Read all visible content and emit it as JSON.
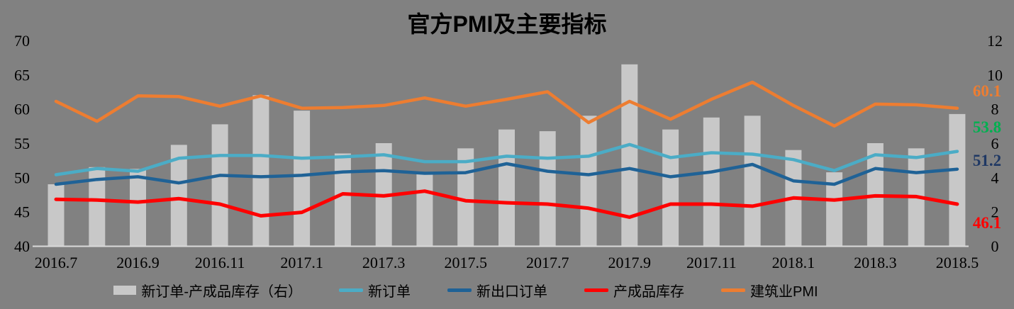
{
  "title": "官方PMI及主要指标",
  "colors": {
    "background": "#818181",
    "bar": "#C8C8C8",
    "new_orders_line": "#4BACC6",
    "new_export_orders_line": "#1F6296",
    "finished_goods_inventory_line": "#FF0000",
    "construction_pmi_line": "#ED7D31",
    "axis_line": "#DADADA",
    "text": "#000000",
    "end_label_new_orders": "#00B050",
    "end_label_new_export_orders": "#1F3864"
  },
  "chart_data": {
    "type": "combo-bar-line",
    "title": "官方PMI及主要指标",
    "grid": false,
    "legend_position": "bottom",
    "categories": [
      "2016.7",
      "2016.8",
      "2016.9",
      "2016.10",
      "2016.11",
      "2016.12",
      "2017.1",
      "2017.2",
      "2017.3",
      "2017.4",
      "2017.5",
      "2017.6",
      "2017.7",
      "2017.8",
      "2017.9",
      "2017.10",
      "2017.11",
      "2017.12",
      "2018.1",
      "2018.2",
      "2018.3",
      "2018.4",
      "2018.5"
    ],
    "x_tick_labels": [
      "2016.7",
      "2016.9",
      "2016.11",
      "2017.1",
      "2017.3",
      "2017.5",
      "2017.7",
      "2017.9",
      "2017.11",
      "2018.1",
      "2018.3",
      "2018.5"
    ],
    "left_axis": {
      "min": 40,
      "max": 70,
      "ticks": [
        70,
        65,
        60,
        55,
        50,
        45,
        40
      ]
    },
    "right_axis": {
      "min": 0,
      "max": 12,
      "ticks": [
        12,
        10,
        8,
        6,
        4,
        2,
        0
      ]
    },
    "series": [
      {
        "key": "bar_new_orders_minus_inventory",
        "name": "新订单-产成品库存（右）",
        "type": "bar",
        "axis": "right",
        "color": "#C8C8C8",
        "values": [
          3.6,
          4.6,
          4.5,
          5.9,
          7.1,
          8.8,
          7.9,
          5.4,
          6.0,
          4.3,
          5.7,
          6.8,
          6.7,
          7.6,
          10.6,
          6.8,
          7.5,
          7.6,
          5.6,
          4.3,
          6.0,
          5.7,
          7.7
        ]
      },
      {
        "key": "new_orders",
        "name": "新订单",
        "type": "line",
        "axis": "left",
        "color": "#4BACC6",
        "values": [
          50.4,
          51.3,
          50.9,
          52.8,
          53.2,
          53.2,
          52.8,
          53.0,
          53.3,
          52.3,
          52.3,
          53.1,
          52.8,
          53.1,
          54.8,
          52.9,
          53.6,
          53.4,
          52.6,
          51.0,
          53.3,
          52.9,
          53.8
        ]
      },
      {
        "key": "new_export_orders",
        "name": "新出口订单",
        "type": "line",
        "axis": "left",
        "color": "#1F6296",
        "values": [
          49.0,
          49.7,
          50.1,
          49.2,
          50.3,
          50.1,
          50.3,
          50.8,
          51.0,
          50.6,
          50.7,
          52.0,
          50.9,
          50.4,
          51.3,
          50.1,
          50.8,
          51.9,
          49.5,
          49.0,
          51.3,
          50.7,
          51.2
        ]
      },
      {
        "key": "finished_goods_inventory",
        "name": "产成品库存",
        "type": "line",
        "axis": "left",
        "color": "#FF0000",
        "values": [
          46.8,
          46.7,
          46.4,
          46.9,
          46.1,
          44.4,
          44.9,
          47.6,
          47.3,
          48.0,
          46.6,
          46.3,
          46.1,
          45.5,
          44.2,
          46.1,
          46.1,
          45.8,
          47.0,
          46.7,
          47.3,
          47.2,
          46.1
        ]
      },
      {
        "key": "construction_pmi",
        "name": "建筑业PMI",
        "type": "line",
        "axis": "left",
        "color": "#ED7D31",
        "values": [
          61.1,
          58.2,
          61.9,
          61.8,
          60.4,
          61.9,
          60.1,
          60.2,
          60.5,
          61.6,
          60.4,
          61.4,
          62.5,
          58.0,
          61.1,
          58.5,
          61.4,
          63.9,
          60.5,
          57.5,
          60.7,
          60.6,
          60.1
        ]
      }
    ],
    "end_labels": [
      {
        "text": "60.1",
        "series_key": "construction_pmi",
        "color": "#ED7D31"
      },
      {
        "text": "53.8",
        "series_key": "new_orders",
        "color": "#00B050"
      },
      {
        "text": "51.2",
        "series_key": "new_export_orders",
        "color": "#1F3864"
      },
      {
        "text": "46.1",
        "series_key": "finished_goods_inventory",
        "color": "#FF0000"
      }
    ]
  }
}
